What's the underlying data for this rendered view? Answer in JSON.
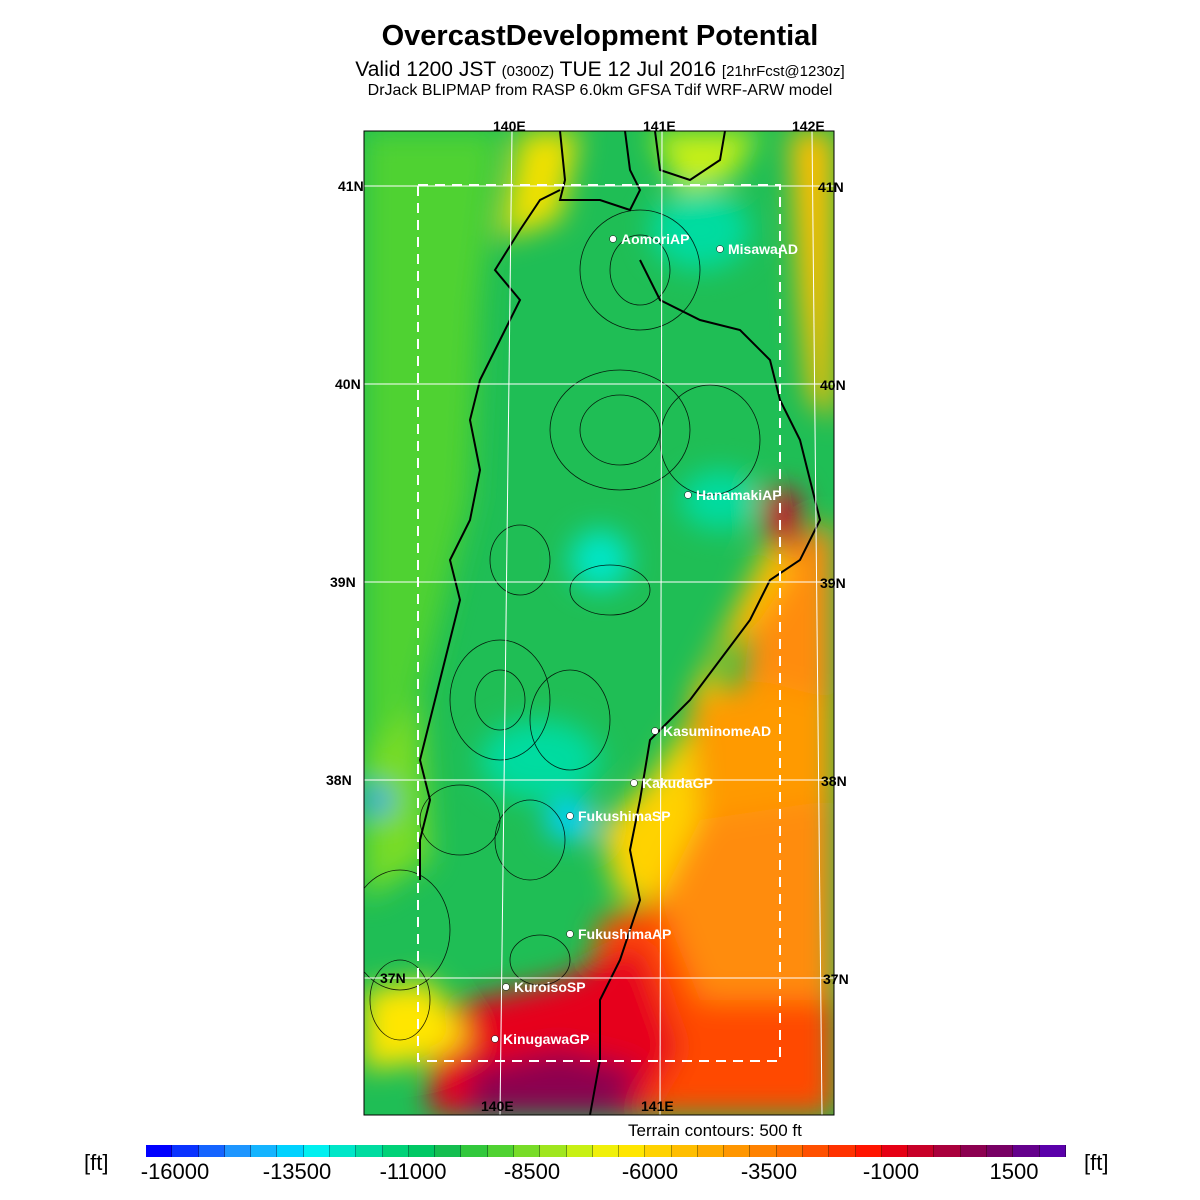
{
  "title": "OvercastDevelopment Potential",
  "subtitle": {
    "pre": "Valid 1200 JST",
    "small1": "(0300Z)",
    "mid": "TUE 12 Jul 2016",
    "small2": "[21hrFcst@1230z]"
  },
  "source_line": "DrJack BLIPMAP from RASP 6.0km GFSA Tdif WRF-ARW model",
  "grid_labels": {
    "lon_top": [
      "140E",
      "141E",
      "142E"
    ],
    "lon_bottom": [
      "140E",
      "141E"
    ],
    "lat_left": [
      "41N",
      "40N",
      "39N",
      "38N",
      "37N"
    ],
    "lat_right": [
      "41N",
      "40N",
      "39N",
      "38N",
      "37N"
    ]
  },
  "stations": [
    {
      "name": "AomoriAP"
    },
    {
      "name": "MisawaAD"
    },
    {
      "name": "HanamakiAP"
    },
    {
      "name": "KasuminomeAD"
    },
    {
      "name": "KakudaGP"
    },
    {
      "name": "FukushimaSP"
    },
    {
      "name": "FukushimaAP"
    },
    {
      "name": "KuroisoSP"
    },
    {
      "name": "KinugawaGP"
    }
  ],
  "terrain_note": "Terrain contours: 500 ft",
  "unit_label": "[ft]",
  "colorbar": {
    "ticks": [
      "-16000",
      "-13500",
      "-11000",
      "-8500",
      "-6000",
      "-3500",
      "-1000",
      "1500"
    ],
    "colors": [
      "#0000ff",
      "#0a32ff",
      "#1464ff",
      "#1e96ff",
      "#14b4ff",
      "#00d2ff",
      "#00f0f0",
      "#00e6c8",
      "#00dca0",
      "#00d278",
      "#00c864",
      "#14be50",
      "#32c83c",
      "#50d232",
      "#78dc28",
      "#a0e61e",
      "#c8f014",
      "#f0f00a",
      "#ffe600",
      "#ffd200",
      "#ffbe00",
      "#ffaa00",
      "#ff9600",
      "#ff8200",
      "#ff6e00",
      "#ff5000",
      "#ff3200",
      "#ff1400",
      "#e60014",
      "#c80028",
      "#aa003c",
      "#8c0050",
      "#780064",
      "#64008c",
      "#5a00aa"
    ]
  },
  "legend_colors": {
    "deep_low": "#0000ff",
    "high": "#5a00aa",
    "mid": "#00c864"
  }
}
